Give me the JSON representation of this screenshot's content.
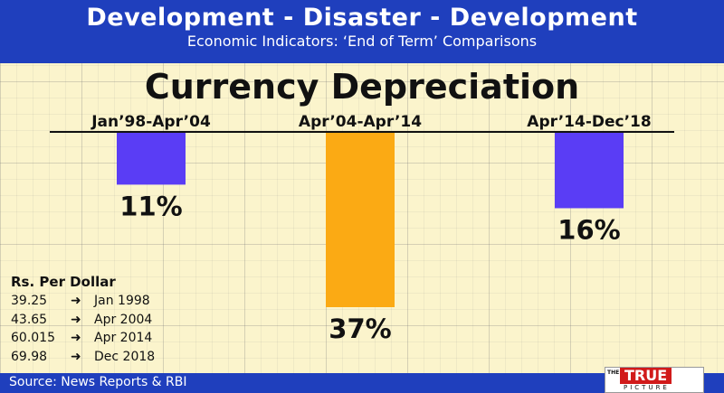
{
  "header": {
    "title": "Development - Disaster - Development",
    "subtitle": "Economic Indicators: ‘End of  Term’ Comparisons"
  },
  "chart_data": {
    "type": "bar",
    "title": "Currency Depreciation",
    "categories": [
      "Jan’98-Apr’04",
      "Apr’04-Apr’14",
      "Apr’14-Dec’18"
    ],
    "values": [
      11,
      37,
      16
    ],
    "labels": [
      "11%",
      "37%",
      "16%"
    ],
    "colors": [
      "#5a3df5",
      "#fbaa14",
      "#5a3df5"
    ],
    "ylim": [
      0,
      37
    ]
  },
  "rates": {
    "header": "Rs. Per Dollar",
    "rows": [
      {
        "value": "39.25",
        "date": "Jan 1998"
      },
      {
        "value": "43.65",
        "date": "Apr 2004"
      },
      {
        "value": "60.015",
        "date": "Apr 2014"
      },
      {
        "value": "69.98",
        "date": "Dec 2018"
      }
    ]
  },
  "footer": {
    "source": "Source: News Reports & RBI"
  },
  "logo": {
    "the": "THE",
    "true": "TRUE",
    "picture": "PICTURE"
  }
}
